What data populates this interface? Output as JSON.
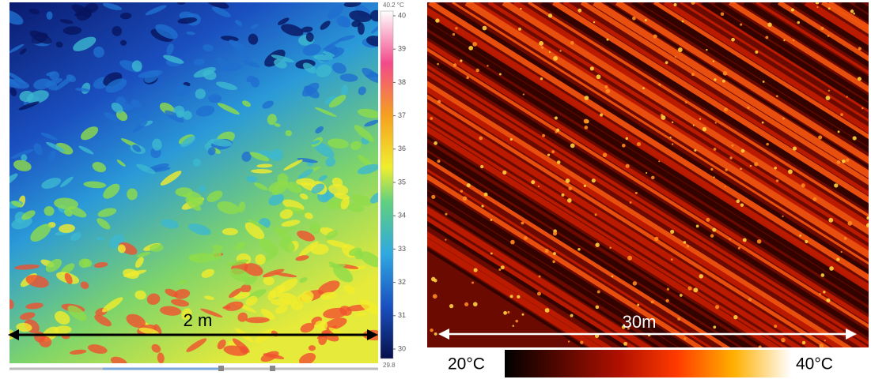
{
  "left_panel": {
    "scale_label": "2 m",
    "colorbar": {
      "max_label": "40.2 °C",
      "ticks": [
        40,
        39,
        38,
        37,
        36,
        35,
        34,
        33,
        32,
        31,
        30
      ],
      "min_label": "29.8"
    }
  },
  "right_panel": {
    "scale_label": "30m",
    "colorbar": {
      "low_label": "20°C",
      "high_label": "40°C"
    }
  }
}
